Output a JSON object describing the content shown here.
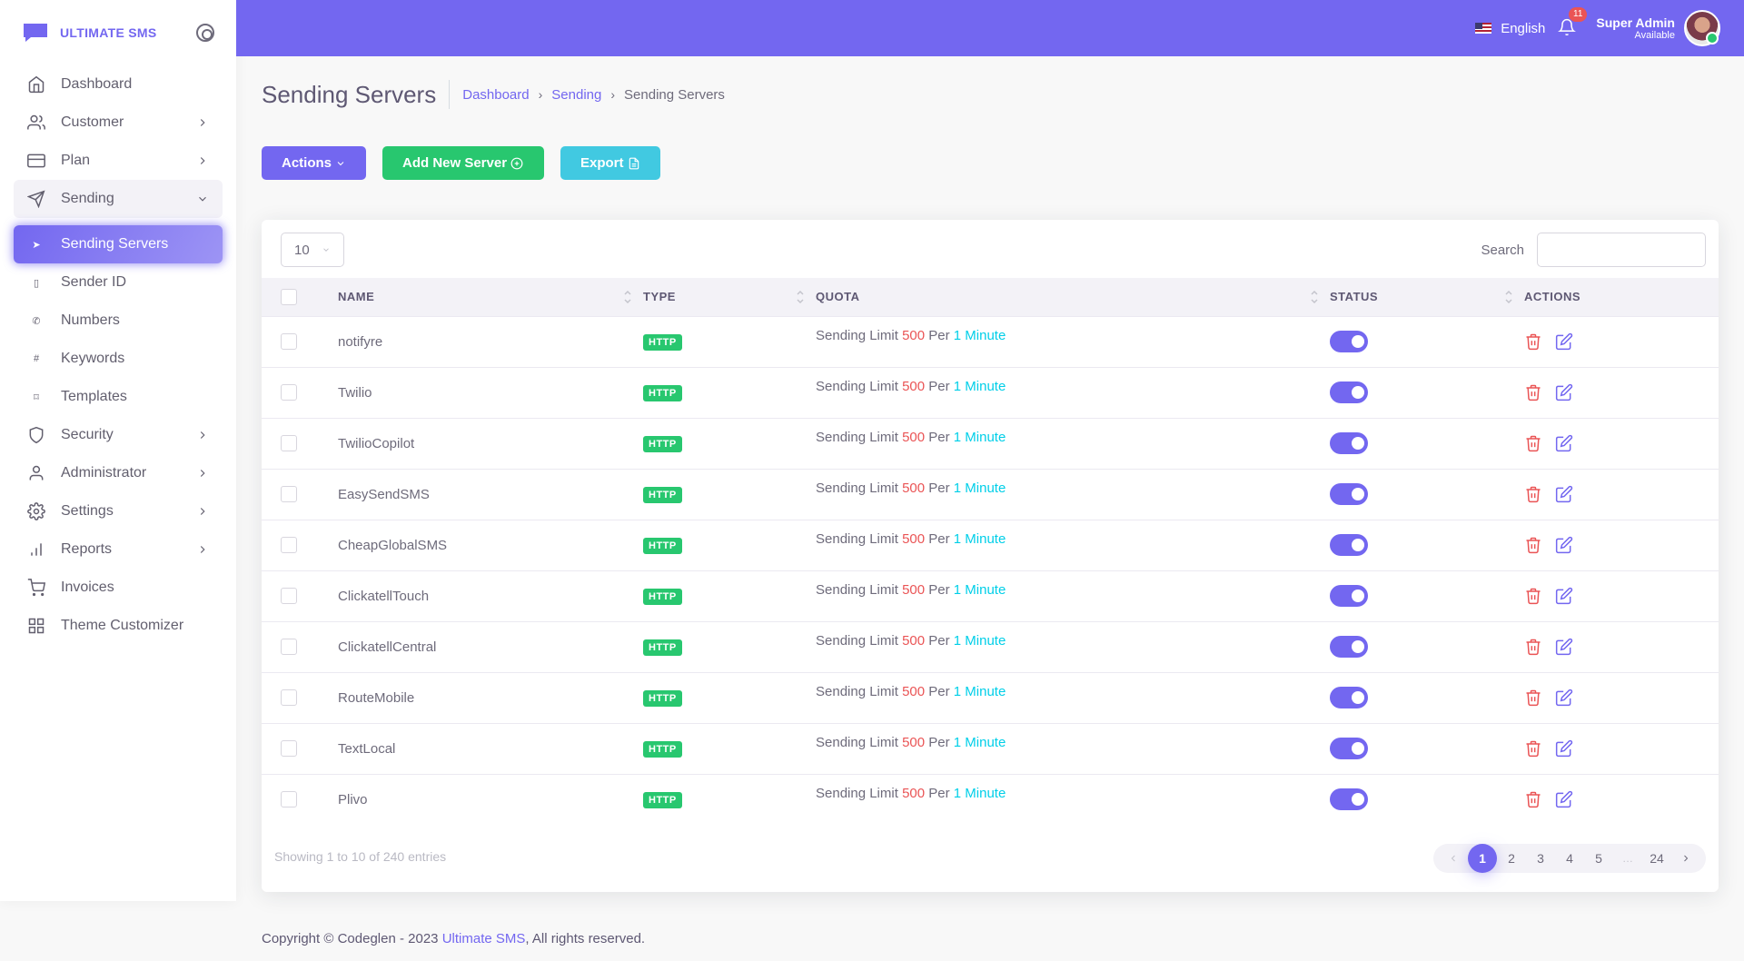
{
  "brand": {
    "name": "ULTIMATE SMS"
  },
  "sidebar": {
    "items": [
      {
        "label": "Dashboard",
        "icon": "home-icon",
        "has_children": false
      },
      {
        "label": "Customer",
        "icon": "users-icon",
        "has_children": true
      },
      {
        "label": "Plan",
        "icon": "credit-card-icon",
        "has_children": true
      },
      {
        "label": "Sending",
        "icon": "send-icon",
        "has_children": true,
        "open": true
      }
    ],
    "sub_items": [
      {
        "label": "Sending Servers",
        "icon": "send-icon",
        "active": true
      },
      {
        "label": "Sender ID",
        "icon": "book-icon"
      },
      {
        "label": "Numbers",
        "icon": "phone-icon"
      },
      {
        "label": "Keywords",
        "icon": "hash-icon"
      },
      {
        "label": "Templates",
        "icon": "bookmark-icon"
      }
    ],
    "items_after": [
      {
        "label": "Security",
        "icon": "shield-icon",
        "has_children": true
      },
      {
        "label": "Administrator",
        "icon": "user-icon",
        "has_children": true
      },
      {
        "label": "Settings",
        "icon": "settings-icon",
        "has_children": true
      },
      {
        "label": "Reports",
        "icon": "bar-chart-icon",
        "has_children": true
      },
      {
        "label": "Invoices",
        "icon": "shopping-cart-icon",
        "has_children": false
      },
      {
        "label": "Theme Customizer",
        "icon": "grid-icon",
        "has_children": false
      }
    ]
  },
  "header": {
    "language": "English",
    "notification_count": "11",
    "user_name": "Super Admin",
    "user_status": "Available",
    "colors": {
      "primary": "#7367f0"
    }
  },
  "page": {
    "title": "Sending Servers",
    "breadcrumb": [
      "Dashboard",
      "Sending",
      "Sending Servers"
    ]
  },
  "toolbar": {
    "actions_label": "Actions",
    "add_label": "Add New Server",
    "export_label": "Export"
  },
  "table": {
    "page_length": "10",
    "search_label": "Search",
    "search_value": "",
    "columns": [
      "NAME",
      "TYPE",
      "QUOTA",
      "STATUS",
      "ACTIONS"
    ],
    "rows": [
      {
        "name": "notifyre",
        "type": "HTTP",
        "quota_prefix": "Sending Limit",
        "quota_value": "500",
        "quota_per": "Per",
        "quota_unit": "1 Minute",
        "status": true
      },
      {
        "name": "Twilio",
        "type": "HTTP",
        "quota_prefix": "Sending Limit",
        "quota_value": "500",
        "quota_per": "Per",
        "quota_unit": "1 Minute",
        "status": true
      },
      {
        "name": "TwilioCopilot",
        "type": "HTTP",
        "quota_prefix": "Sending Limit",
        "quota_value": "500",
        "quota_per": "Per",
        "quota_unit": "1 Minute",
        "status": true
      },
      {
        "name": "EasySendSMS",
        "type": "HTTP",
        "quota_prefix": "Sending Limit",
        "quota_value": "500",
        "quota_per": "Per",
        "quota_unit": "1 Minute",
        "status": true
      },
      {
        "name": "CheapGlobalSMS",
        "type": "HTTP",
        "quota_prefix": "Sending Limit",
        "quota_value": "500",
        "quota_per": "Per",
        "quota_unit": "1 Minute",
        "status": true
      },
      {
        "name": "ClickatellTouch",
        "type": "HTTP",
        "quota_prefix": "Sending Limit",
        "quota_value": "500",
        "quota_per": "Per",
        "quota_unit": "1 Minute",
        "status": true
      },
      {
        "name": "ClickatellCentral",
        "type": "HTTP",
        "quota_prefix": "Sending Limit",
        "quota_value": "500",
        "quota_per": "Per",
        "quota_unit": "1 Minute",
        "status": true
      },
      {
        "name": "RouteMobile",
        "type": "HTTP",
        "quota_prefix": "Sending Limit",
        "quota_value": "500",
        "quota_per": "Per",
        "quota_unit": "1 Minute",
        "status": true
      },
      {
        "name": "TextLocal",
        "type": "HTTP",
        "quota_prefix": "Sending Limit",
        "quota_value": "500",
        "quota_per": "Per",
        "quota_unit": "1 Minute",
        "status": true
      },
      {
        "name": "Plivo",
        "type": "HTTP",
        "quota_prefix": "Sending Limit",
        "quota_value": "500",
        "quota_per": "Per",
        "quota_unit": "1 Minute",
        "status": true
      }
    ],
    "showing_text": "Showing 1 to 10 of 240 entries",
    "pagination": [
      "1",
      "2",
      "3",
      "4",
      "5",
      "…",
      "24"
    ],
    "current_page": "1"
  },
  "footer": {
    "prefix": "Copyright © Codeglen - 2023",
    "link": "Ultimate SMS",
    "suffix": ", All rights reserved."
  }
}
